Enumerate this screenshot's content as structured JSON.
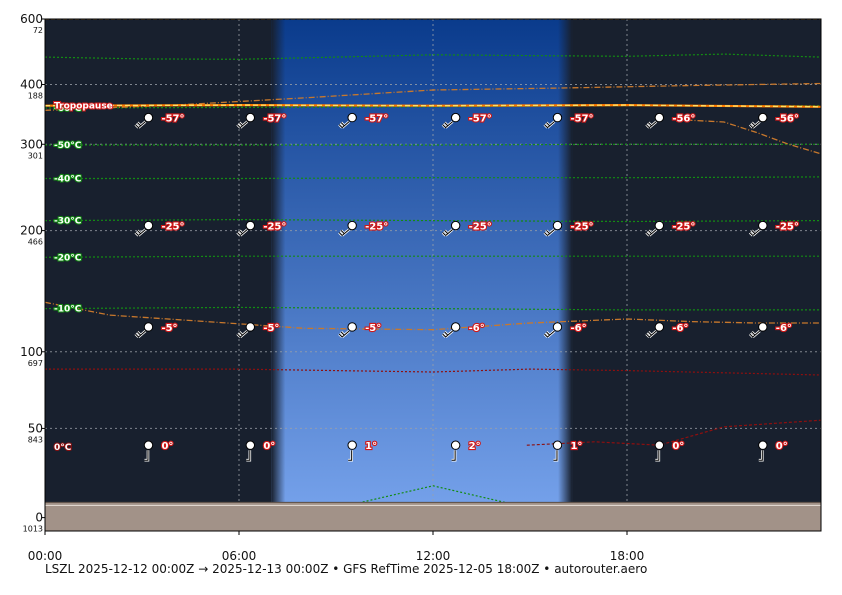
{
  "chart_data": {
    "type": "line",
    "caption": "LSZL 2025-12-12 00:00Z → 2025-12-13 00:00Z • GFS RefTime 2025-12-05 18:00Z • autorouter.aero",
    "x_ticks": [
      {
        "hour": 0,
        "label": "00:00"
      },
      {
        "hour": 6,
        "label": "06:00"
      },
      {
        "hour": 12,
        "label": "12:00"
      },
      {
        "hour": 18,
        "label": "18:00"
      }
    ],
    "xlim_hours": [
      0,
      24
    ],
    "y_ticks": [
      {
        "fl": 0,
        "label": "0",
        "hpa": "1013"
      },
      {
        "fl": 50,
        "label": "50",
        "hpa": "843"
      },
      {
        "fl": 100,
        "label": "100",
        "hpa": "697"
      },
      {
        "fl": 200,
        "label": "200",
        "hpa": "466"
      },
      {
        "fl": 300,
        "label": "300",
        "hpa": "301"
      },
      {
        "fl": 400,
        "label": "400",
        "hpa": "188"
      },
      {
        "fl": 600,
        "label": "600",
        "hpa": "72"
      }
    ],
    "ylim_fl": [
      0,
      600
    ],
    "y_scale": "pressure",
    "daylight_hours": [
      7.0,
      16.3
    ],
    "ground_fl": 8,
    "tropopause": {
      "label": "Tropopause",
      "hours": [
        0,
        6,
        12,
        18,
        24
      ],
      "fl": [
        360,
        361,
        360,
        361,
        358
      ]
    },
    "freezing_level": {
      "hours": [
        14.9,
        17,
        19,
        21,
        24
      ],
      "fl": [
        40,
        42,
        40,
        51,
        55
      ]
    },
    "isotherm_labels": [
      {
        "label": "-60°C",
        "fl": 356
      },
      {
        "label": "-50°C",
        "fl": 299
      },
      {
        "label": "-40°C",
        "fl": 256
      },
      {
        "label": "-30°C",
        "fl": 210
      },
      {
        "label": "-20°C",
        "fl": 175
      },
      {
        "label": "-10°C",
        "fl": 132
      },
      {
        "label": "0°C",
        "fl": 39
      }
    ],
    "isotherms": [
      {
        "name": "-70",
        "hours": [
          0,
          3,
          6,
          9,
          12,
          15,
          18,
          21,
          24
        ],
        "fl": [
          464,
          459,
          458,
          464,
          470,
          468,
          466,
          472,
          464
        ]
      },
      {
        "name": "-60",
        "hours": [
          0,
          6,
          12,
          18,
          24
        ],
        "fl": [
          356,
          357,
          358,
          360,
          360
        ]
      },
      {
        "name": "-50",
        "hours": [
          0,
          6,
          12,
          18,
          24
        ],
        "fl": [
          299,
          299,
          299,
          300,
          300
        ]
      },
      {
        "name": "-40",
        "hours": [
          0,
          6,
          12,
          18,
          24
        ],
        "fl": [
          256,
          256,
          257,
          257,
          258
        ]
      },
      {
        "name": "-30",
        "hours": [
          0,
          6,
          12,
          18,
          24
        ],
        "fl": [
          210,
          211,
          210,
          209,
          210
        ]
      },
      {
        "name": "-20",
        "hours": [
          0,
          6,
          12,
          18,
          24
        ],
        "fl": [
          175,
          176,
          176,
          176,
          176
        ]
      },
      {
        "name": "-10",
        "hours": [
          0,
          6,
          12,
          18,
          24
        ],
        "fl": [
          132,
          133,
          132,
          131,
          131
        ]
      },
      {
        "name": "0",
        "hours": [
          0,
          6,
          9,
          12,
          15,
          18,
          24
        ],
        "fl": [
          88,
          88,
          87,
          86,
          88,
          87,
          84
        ]
      },
      {
        "name": "10",
        "hours": [
          8.5,
          12,
          15.5
        ],
        "fl": [
          3,
          17,
          3
        ]
      }
    ],
    "orange_upper": {
      "hours": [
        0,
        4,
        8,
        12,
        16,
        20,
        24
      ],
      "fl": [
        352,
        361,
        374,
        389,
        393,
        398,
        402
      ]
    },
    "orange_upper_drop": {
      "hours": [
        19.5,
        21,
        22,
        23,
        24
      ],
      "fl": [
        337,
        333,
        317,
        300,
        287
      ]
    },
    "orange_lower": {
      "hours": [
        0,
        2,
        5,
        8,
        12,
        15,
        18,
        20,
        22,
        24
      ],
      "fl": [
        137,
        127,
        122,
        117,
        116,
        121,
        124,
        122,
        121,
        121
      ]
    },
    "cloud_top_line": {
      "hours": [
        0,
        24
      ],
      "fl": [
        600,
        600
      ]
    },
    "wind_levels": [
      {
        "fl": 340,
        "temps": [
          "-57°",
          "-57°",
          "-57°",
          "-57°",
          "-57°",
          "-56°",
          "-56°"
        ]
      },
      {
        "fl": 205,
        "temps": [
          "-25°",
          "-25°",
          "-25°",
          "-25°",
          "-25°",
          "-25°",
          "-25°"
        ]
      },
      {
        "fl": 118,
        "temps": [
          "-5°",
          "-5°",
          "-5°",
          "-6°",
          "-6°",
          "-6°",
          "-6°"
        ]
      },
      {
        "fl": 40,
        "temps": [
          "0°",
          "0°",
          "1°",
          "2°",
          "1°",
          "0°",
          "0°"
        ]
      }
    ],
    "wind_hours": [
      3.2,
      6.35,
      9.5,
      12.7,
      15.85,
      19,
      22.2
    ],
    "colors": {
      "night": "#18202e",
      "day_top": "#0a3b8c",
      "day_bottom": "#7aa6ef",
      "ground": "#a29288",
      "isotherm": "#138c13",
      "zero_isotherm": "#8e0f0f",
      "tropopause": "#ffe066",
      "orange": "#c8782c",
      "grid": "#9aa0a8"
    }
  }
}
